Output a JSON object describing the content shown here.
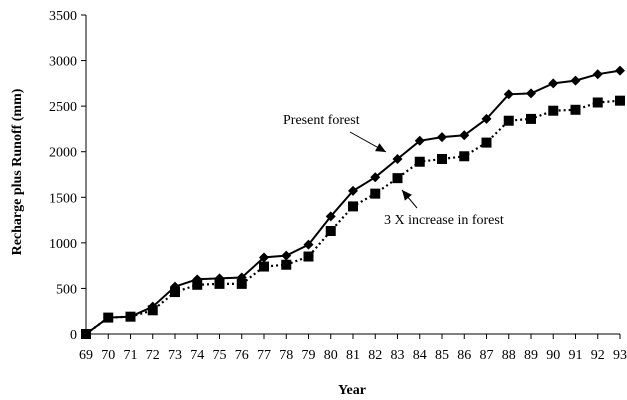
{
  "chart_data": {
    "type": "line",
    "title": "",
    "xlabel": "Year",
    "ylabel": "Recharge plus Runoff (mm)",
    "x": [
      "69",
      "70",
      "71",
      "72",
      "73",
      "74",
      "75",
      "76",
      "77",
      "78",
      "79",
      "80",
      "81",
      "82",
      "83",
      "84",
      "85",
      "86",
      "87",
      "88",
      "89",
      "90",
      "91",
      "92",
      "93"
    ],
    "ylim": [
      0,
      3500
    ],
    "yticks": [
      "0",
      "500",
      "1000",
      "1500",
      "2000",
      "2500",
      "3000",
      "3500"
    ],
    "grid": false,
    "legend": "none",
    "series": [
      {
        "marker": "diamond",
        "line": "solid",
        "values": [
          0,
          180,
          190,
          300,
          520,
          600,
          610,
          620,
          840,
          860,
          980,
          1290,
          1570,
          1720,
          1920,
          2120,
          2160,
          2180,
          2360,
          2630,
          2640,
          2750,
          2780,
          2850,
          2890
        ]
      },
      {
        "marker": "square",
        "line": "dotted",
        "values": [
          0,
          180,
          190,
          260,
          460,
          540,
          550,
          550,
          740,
          760,
          850,
          1130,
          1400,
          1540,
          1710,
          1890,
          1920,
          1950,
          2100,
          2340,
          2360,
          2450,
          2460,
          2540,
          2560
        ]
      }
    ],
    "annotations": [
      {
        "text": "Present forest"
      },
      {
        "text": "3 X increase in forest"
      }
    ]
  }
}
